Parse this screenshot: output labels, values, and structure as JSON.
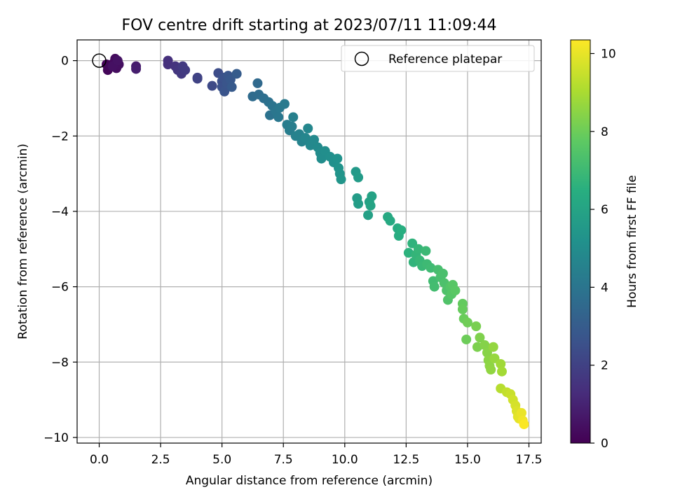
{
  "chart_data": {
    "type": "scatter",
    "title": "FOV centre drift starting at 2023/07/11 11:09:44",
    "xlabel": "Angular distance from reference (arcmin)",
    "ylabel": "Rotation from reference (arcmin)",
    "colorbar_label": "Hours from first FF file",
    "xlim": [
      -0.9,
      18.0
    ],
    "ylim": [
      -10.15,
      0.55
    ],
    "clim": [
      0,
      10.35
    ],
    "colormap": "viridis",
    "grid": true,
    "legend": {
      "placement": "top-right",
      "entries": [
        "Reference platepar"
      ]
    },
    "xticks": [
      {
        "v": 0.0,
        "label": "0.0"
      },
      {
        "v": 2.5,
        "label": "2.5"
      },
      {
        "v": 5.0,
        "label": "5.0"
      },
      {
        "v": 7.5,
        "label": "7.5"
      },
      {
        "v": 10.0,
        "label": "10.0"
      },
      {
        "v": 12.5,
        "label": "12.5"
      },
      {
        "v": 15.0,
        "label": "15.0"
      },
      {
        "v": 17.5,
        "label": "17.5"
      }
    ],
    "yticks": [
      {
        "v": 0,
        "label": "0"
      },
      {
        "v": -2,
        "label": "−2"
      },
      {
        "v": -4,
        "label": "−4"
      },
      {
        "v": -6,
        "label": "−6"
      },
      {
        "v": -8,
        "label": "−8"
      },
      {
        "v": -10,
        "label": "−10"
      }
    ],
    "cticks": [
      {
        "v": 0,
        "label": "0"
      },
      {
        "v": 2,
        "label": "2"
      },
      {
        "v": 4,
        "label": "4"
      },
      {
        "v": 6,
        "label": "6"
      },
      {
        "v": 8,
        "label": "8"
      },
      {
        "v": 10,
        "label": "10"
      }
    ],
    "reference_point": {
      "x": 0.0,
      "y": 0.0,
      "name": "Reference platepar"
    },
    "series": [
      {
        "points": [
          {
            "x": 0.3,
            "y": -0.1,
            "h": 0.1
          },
          {
            "x": 0.35,
            "y": -0.25,
            "h": 0.15
          },
          {
            "x": 0.45,
            "y": -0.15,
            "h": 0.2
          },
          {
            "x": 0.6,
            "y": -0.05,
            "h": 0.25
          },
          {
            "x": 0.65,
            "y": 0.05,
            "h": 0.3
          },
          {
            "x": 0.7,
            "y": -0.2,
            "h": 0.35
          },
          {
            "x": 0.8,
            "y": -0.1,
            "h": 0.4
          },
          {
            "x": 0.55,
            "y": -0.15,
            "h": 0.45
          },
          {
            "x": 0.75,
            "y": 0.0,
            "h": 0.5
          },
          {
            "x": 1.5,
            "y": -0.15,
            "h": 0.8
          },
          {
            "x": 1.5,
            "y": -0.22,
            "h": 0.85
          },
          {
            "x": 2.8,
            "y": 0.0,
            "h": 1.4
          },
          {
            "x": 2.8,
            "y": -0.1,
            "h": 1.45
          },
          {
            "x": 3.1,
            "y": -0.15,
            "h": 1.55
          },
          {
            "x": 3.2,
            "y": -0.25,
            "h": 1.6
          },
          {
            "x": 3.35,
            "y": -0.35,
            "h": 1.7
          },
          {
            "x": 3.4,
            "y": -0.15,
            "h": 1.75
          },
          {
            "x": 3.5,
            "y": -0.25,
            "h": 1.8
          },
          {
            "x": 4.0,
            "y": -0.45,
            "h": 2.0
          },
          {
            "x": 4.0,
            "y": -0.48,
            "h": 2.05
          },
          {
            "x": 4.6,
            "y": -0.67,
            "h": 2.3
          },
          {
            "x": 4.85,
            "y": -0.33,
            "h": 2.4
          },
          {
            "x": 5.0,
            "y": -0.55,
            "h": 2.5
          },
          {
            "x": 5.0,
            "y": -0.7,
            "h": 2.55
          },
          {
            "x": 5.05,
            "y": -0.45,
            "h": 2.6
          },
          {
            "x": 5.1,
            "y": -0.82,
            "h": 2.65
          },
          {
            "x": 5.2,
            "y": -0.6,
            "h": 2.7
          },
          {
            "x": 5.25,
            "y": -0.4,
            "h": 2.75
          },
          {
            "x": 5.35,
            "y": -0.5,
            "h": 2.85
          },
          {
            "x": 5.4,
            "y": -0.7,
            "h": 2.9
          },
          {
            "x": 5.6,
            "y": -0.35,
            "h": 3.0
          },
          {
            "x": 6.45,
            "y": -0.6,
            "h": 3.5
          },
          {
            "x": 6.25,
            "y": -0.95,
            "h": 3.6
          },
          {
            "x": 6.5,
            "y": -0.9,
            "h": 3.65
          },
          {
            "x": 6.7,
            "y": -1.0,
            "h": 3.75
          },
          {
            "x": 6.9,
            "y": -1.1,
            "h": 3.85
          },
          {
            "x": 6.95,
            "y": -1.45,
            "h": 3.9
          },
          {
            "x": 7.05,
            "y": -1.2,
            "h": 3.95
          },
          {
            "x": 7.2,
            "y": -1.35,
            "h": 4.05
          },
          {
            "x": 7.3,
            "y": -1.5,
            "h": 4.1
          },
          {
            "x": 7.35,
            "y": -1.25,
            "h": 4.15
          },
          {
            "x": 7.55,
            "y": -1.15,
            "h": 4.2
          },
          {
            "x": 7.65,
            "y": -1.7,
            "h": 4.3
          },
          {
            "x": 7.75,
            "y": -1.85,
            "h": 4.35
          },
          {
            "x": 7.85,
            "y": -1.75,
            "h": 4.4
          },
          {
            "x": 7.9,
            "y": -1.5,
            "h": 4.45
          },
          {
            "x": 8.0,
            "y": -2.0,
            "h": 4.5
          },
          {
            "x": 8.15,
            "y": -1.95,
            "h": 4.55
          },
          {
            "x": 8.25,
            "y": -2.15,
            "h": 4.6
          },
          {
            "x": 8.4,
            "y": -2.05,
            "h": 4.7
          },
          {
            "x": 8.5,
            "y": -1.8,
            "h": 4.75
          },
          {
            "x": 8.6,
            "y": -2.25,
            "h": 4.8
          },
          {
            "x": 8.75,
            "y": -2.1,
            "h": 4.85
          },
          {
            "x": 8.9,
            "y": -2.3,
            "h": 4.9
          },
          {
            "x": 9.0,
            "y": -2.45,
            "h": 4.95
          },
          {
            "x": 9.05,
            "y": -2.6,
            "h": 5.0
          },
          {
            "x": 9.2,
            "y": -2.4,
            "h": 5.05
          },
          {
            "x": 9.4,
            "y": -2.55,
            "h": 5.1
          },
          {
            "x": 9.55,
            "y": -2.7,
            "h": 5.15
          },
          {
            "x": 9.7,
            "y": -2.6,
            "h": 5.2
          },
          {
            "x": 9.75,
            "y": -2.85,
            "h": 5.25
          },
          {
            "x": 9.8,
            "y": -3.0,
            "h": 5.3
          },
          {
            "x": 9.85,
            "y": -3.15,
            "h": 5.35
          },
          {
            "x": 10.45,
            "y": -2.95,
            "h": 5.55
          },
          {
            "x": 10.55,
            "y": -3.1,
            "h": 5.6
          },
          {
            "x": 10.5,
            "y": -3.65,
            "h": 5.65
          },
          {
            "x": 10.55,
            "y": -3.8,
            "h": 5.7
          },
          {
            "x": 10.95,
            "y": -4.1,
            "h": 5.85
          },
          {
            "x": 11.0,
            "y": -3.75,
            "h": 5.9
          },
          {
            "x": 11.1,
            "y": -3.6,
            "h": 5.95
          },
          {
            "x": 11.05,
            "y": -3.85,
            "h": 6.0
          },
          {
            "x": 11.75,
            "y": -4.15,
            "h": 6.2
          },
          {
            "x": 11.85,
            "y": -4.25,
            "h": 6.25
          },
          {
            "x": 12.15,
            "y": -4.45,
            "h": 6.35
          },
          {
            "x": 12.2,
            "y": -4.65,
            "h": 6.4
          },
          {
            "x": 12.3,
            "y": -4.5,
            "h": 6.45
          },
          {
            "x": 12.6,
            "y": -5.1,
            "h": 6.6
          },
          {
            "x": 12.75,
            "y": -4.85,
            "h": 6.65
          },
          {
            "x": 12.8,
            "y": -5.35,
            "h": 6.7
          },
          {
            "x": 12.9,
            "y": -5.15,
            "h": 6.75
          },
          {
            "x": 13.0,
            "y": -5.0,
            "h": 6.8
          },
          {
            "x": 13.05,
            "y": -5.3,
            "h": 6.85
          },
          {
            "x": 13.15,
            "y": -5.45,
            "h": 6.9
          },
          {
            "x": 13.3,
            "y": -5.05,
            "h": 6.95
          },
          {
            "x": 13.35,
            "y": -5.4,
            "h": 7.0
          },
          {
            "x": 13.5,
            "y": -5.5,
            "h": 7.05
          },
          {
            "x": 13.6,
            "y": -5.85,
            "h": 7.1
          },
          {
            "x": 13.65,
            "y": -6.0,
            "h": 7.15
          },
          {
            "x": 13.8,
            "y": -5.55,
            "h": 7.2
          },
          {
            "x": 13.9,
            "y": -5.75,
            "h": 7.25
          },
          {
            "x": 14.0,
            "y": -5.65,
            "h": 7.3
          },
          {
            "x": 14.05,
            "y": -5.9,
            "h": 7.35
          },
          {
            "x": 14.15,
            "y": -6.1,
            "h": 7.4
          },
          {
            "x": 14.2,
            "y": -6.35,
            "h": 7.45
          },
          {
            "x": 14.3,
            "y": -6.0,
            "h": 7.5
          },
          {
            "x": 14.35,
            "y": -6.2,
            "h": 7.55
          },
          {
            "x": 14.4,
            "y": -5.95,
            "h": 7.6
          },
          {
            "x": 14.5,
            "y": -6.1,
            "h": 7.65
          },
          {
            "x": 14.8,
            "y": -6.45,
            "h": 7.85
          },
          {
            "x": 14.8,
            "y": -6.6,
            "h": 7.9
          },
          {
            "x": 14.85,
            "y": -6.85,
            "h": 7.95
          },
          {
            "x": 14.95,
            "y": -7.4,
            "h": 8.0
          },
          {
            "x": 15.0,
            "y": -6.95,
            "h": 8.05
          },
          {
            "x": 15.35,
            "y": -7.05,
            "h": 8.2
          },
          {
            "x": 15.4,
            "y": -7.6,
            "h": 8.25
          },
          {
            "x": 15.5,
            "y": -7.35,
            "h": 8.3
          },
          {
            "x": 15.7,
            "y": -7.55,
            "h": 8.4
          },
          {
            "x": 15.8,
            "y": -7.75,
            "h": 8.45
          },
          {
            "x": 15.85,
            "y": -7.95,
            "h": 8.5
          },
          {
            "x": 15.9,
            "y": -8.1,
            "h": 8.55
          },
          {
            "x": 15.95,
            "y": -8.2,
            "h": 8.6
          },
          {
            "x": 16.05,
            "y": -7.6,
            "h": 8.65
          },
          {
            "x": 16.1,
            "y": -7.9,
            "h": 8.7
          },
          {
            "x": 16.35,
            "y": -8.05,
            "h": 8.85
          },
          {
            "x": 16.4,
            "y": -8.25,
            "h": 8.9
          },
          {
            "x": 16.35,
            "y": -8.7,
            "h": 9.2
          },
          {
            "x": 16.6,
            "y": -8.8,
            "h": 9.4
          },
          {
            "x": 16.75,
            "y": -8.85,
            "h": 9.5
          },
          {
            "x": 16.85,
            "y": -9.0,
            "h": 9.6
          },
          {
            "x": 16.95,
            "y": -9.15,
            "h": 9.7
          },
          {
            "x": 17.0,
            "y": -9.3,
            "h": 9.8
          },
          {
            "x": 17.05,
            "y": -9.45,
            "h": 9.9
          },
          {
            "x": 17.1,
            "y": -9.5,
            "h": 9.95
          },
          {
            "x": 17.2,
            "y": -9.35,
            "h": 10.05
          },
          {
            "x": 17.25,
            "y": -9.55,
            "h": 10.15
          },
          {
            "x": 17.3,
            "y": -9.65,
            "h": 10.3
          }
        ]
      }
    ]
  }
}
